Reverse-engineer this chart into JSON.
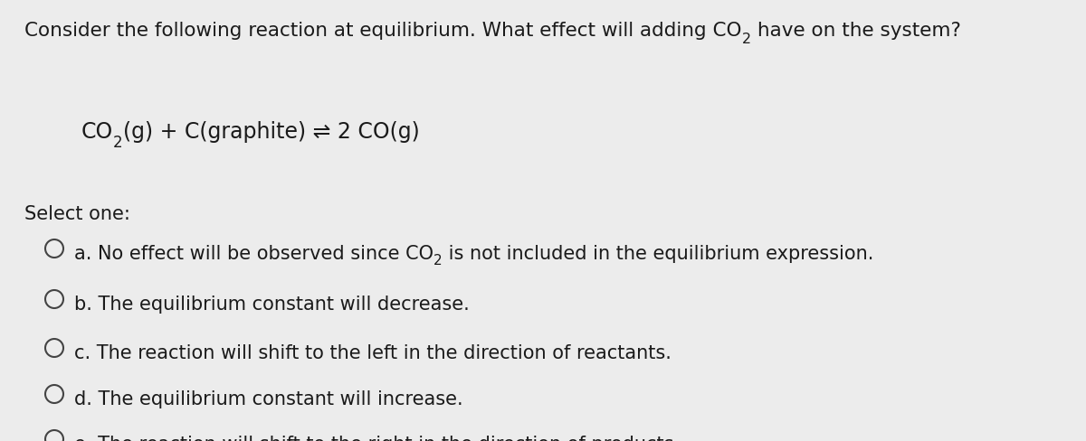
{
  "background_color": "#ececec",
  "text_color": "#1a1a1a",
  "title_fontsize": 15.5,
  "eq_fontsize": 17,
  "select_fontsize": 15,
  "option_fontsize": 15,
  "circle_color": "#444444",
  "options": [
    "a. No effect will be observed since CO₂ is not included in the equilibrium expression.",
    "b. The equilibrium constant will decrease.",
    "c. The reaction will shift to the left in the direction of reactants.",
    "d. The equilibrium constant will increase.",
    "e. The reaction will shift to the right in the direction of products."
  ]
}
